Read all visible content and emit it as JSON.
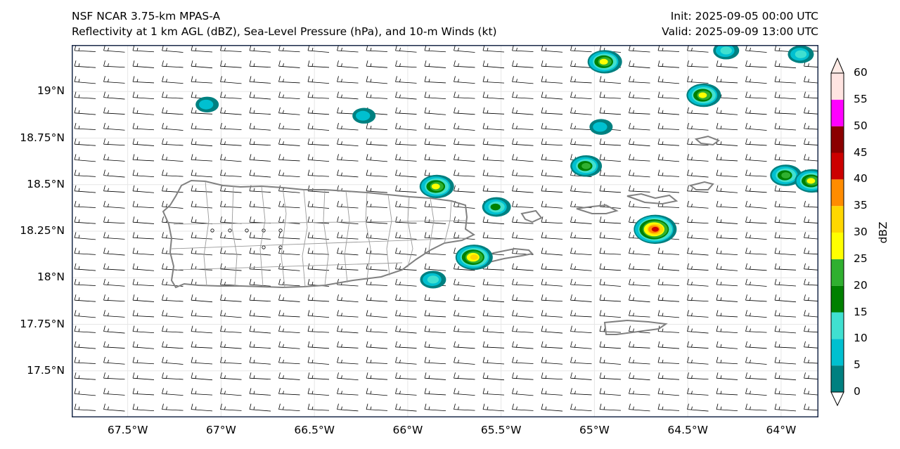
{
  "header": {
    "title_line1": "NSF NCAR 3.75-km MPAS-A",
    "title_line2": "Reflectivity at 1 km AGL (dBZ), Sea-Level Pressure (hPa), and 10-m Winds (kt)",
    "init": "Init: 2025-09-05 00:00 UTC",
    "valid": "Valid: 2025-09-09 13:00 UTC"
  },
  "map": {
    "lon_range": [
      -67.8,
      -63.8
    ],
    "lat_range": [
      17.25,
      19.25
    ],
    "lat_ticks": [
      {
        "value": 19.0,
        "label": "19°N"
      },
      {
        "value": 18.75,
        "label": "18.75°N"
      },
      {
        "value": 18.5,
        "label": "18.5°N"
      },
      {
        "value": 18.25,
        "label": "18.25°N"
      },
      {
        "value": 18.0,
        "label": "18°N"
      },
      {
        "value": 17.75,
        "label": "17.75°N"
      },
      {
        "value": 17.5,
        "label": "17.5°N"
      }
    ],
    "lon_ticks": [
      {
        "value": -67.5,
        "label": "67.5°W"
      },
      {
        "value": -67.0,
        "label": "67°W"
      },
      {
        "value": -66.5,
        "label": "66.5°W"
      },
      {
        "value": -66.0,
        "label": "66°W"
      },
      {
        "value": -65.5,
        "label": "65.5°W"
      },
      {
        "value": -65.0,
        "label": "65°W"
      },
      {
        "value": -64.5,
        "label": "64.5°W"
      },
      {
        "value": -64.0,
        "label": "64°W"
      }
    ],
    "gridlines": true,
    "wind_barbs": "easterly ~10-15 kt",
    "cells": [
      {
        "lon": -64.95,
        "lat": 19.16,
        "peak_dBZ": 30
      },
      {
        "lon": -64.42,
        "lat": 18.98,
        "peak_dBZ": 30
      },
      {
        "lon": -63.9,
        "lat": 19.2,
        "peak_dBZ": 15
      },
      {
        "lon": -65.85,
        "lat": 18.49,
        "peak_dBZ": 30
      },
      {
        "lon": -65.65,
        "lat": 18.11,
        "peak_dBZ": 35
      },
      {
        "lon": -64.68,
        "lat": 18.26,
        "peak_dBZ": 45
      },
      {
        "lon": -65.05,
        "lat": 18.6,
        "peak_dBZ": 25
      },
      {
        "lon": -63.98,
        "lat": 18.55,
        "peak_dBZ": 25
      },
      {
        "lon": -63.84,
        "lat": 18.52,
        "peak_dBZ": 30
      },
      {
        "lon": -65.53,
        "lat": 18.38,
        "peak_dBZ": 20
      },
      {
        "lon": -66.24,
        "lat": 18.87,
        "peak_dBZ": 10
      },
      {
        "lon": -67.08,
        "lat": 18.93,
        "peak_dBZ": 10
      },
      {
        "lon": -65.87,
        "lat": 17.99,
        "peak_dBZ": 15
      },
      {
        "lon": -64.97,
        "lat": 18.81,
        "peak_dBZ": 10
      },
      {
        "lon": -64.3,
        "lat": 19.22,
        "peak_dBZ": 15
      }
    ]
  },
  "colorbar": {
    "unit": "dBZ",
    "ticks": [
      "0",
      "5",
      "10",
      "15",
      "20",
      "25",
      "30",
      "35",
      "40",
      "45",
      "50",
      "55",
      "60"
    ],
    "colors": [
      "#008080",
      "#00c0d0",
      "#40e0d0",
      "#008000",
      "#30b030",
      "#ffff00",
      "#ffd700",
      "#ff8c00",
      "#cc0000",
      "#8b0000",
      "#ff00ff",
      "#ffe4e1"
    ],
    "under_color": "#ffffff",
    "over_color": "#ffebe6"
  }
}
